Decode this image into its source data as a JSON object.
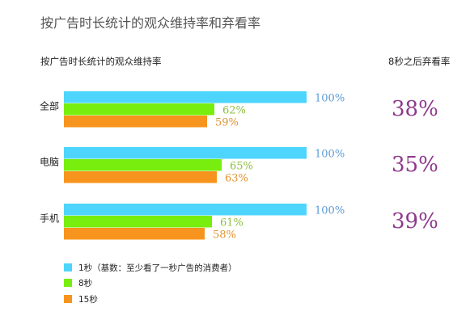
{
  "title": "按广告时长统计的观众维持率和弃看率",
  "left_header": "按广告时长统计的观众维持率",
  "right_header": "8秒之后弃看率",
  "colors": {
    "series_1": "#4dd5fd",
    "series_2": "#77ee0e",
    "series_3": "#f7941d",
    "label_1": "#5b9bd5",
    "label_2": "#8cbf3f",
    "label_3": "#e2932f",
    "abandon": "#8e3a8c"
  },
  "chart_data": {
    "type": "bar",
    "orientation": "horizontal",
    "categories": [
      "全部",
      "电脑",
      "手机"
    ],
    "series": [
      {
        "name": "1秒（基数：至少看了一秒广告的消费者）",
        "values": [
          100,
          100,
          100
        ]
      },
      {
        "name": "8秒",
        "values": [
          62,
          65,
          61
        ]
      },
      {
        "name": "15秒",
        "values": [
          59,
          63,
          58
        ]
      }
    ],
    "value_labels": [
      [
        "100%",
        "62%",
        "59%"
      ],
      [
        "100%",
        "65%",
        "63%"
      ],
      [
        "100%",
        "61%",
        "58%"
      ]
    ],
    "abandon_rate": [
      "38%",
      "35%",
      "39%"
    ],
    "xlim": [
      0,
      100
    ],
    "grid": false,
    "legend_position": "bottom-left"
  }
}
